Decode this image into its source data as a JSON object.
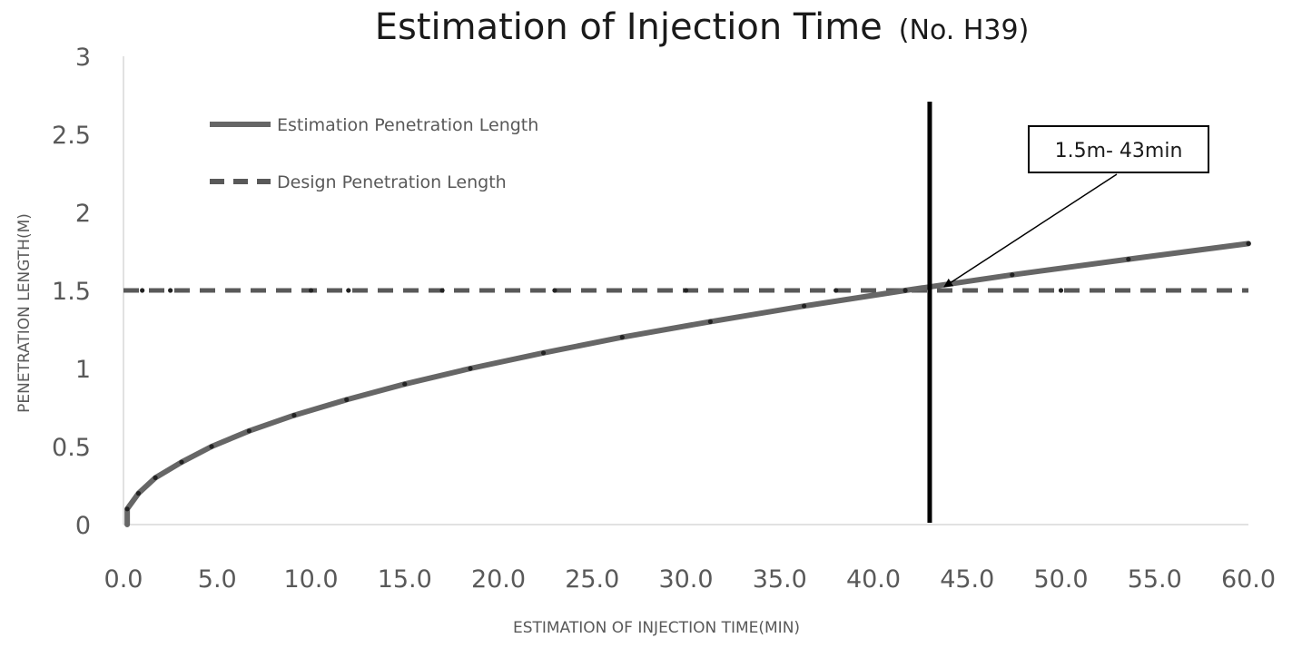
{
  "chart_data": {
    "type": "line",
    "title": "Estimation of Injection Time",
    "subtitle": "(No. H39)",
    "xlabel": "ESTIMATION OF INJECTION TIME(MIN)",
    "ylabel": "PENETRATION LENGTH(M)",
    "xlim": [
      0,
      60
    ],
    "ylim": [
      0,
      3
    ],
    "x_ticks": [
      "0.0",
      "5.0",
      "10.0",
      "15.0",
      "20.0",
      "25.0",
      "30.0",
      "35.0",
      "40.0",
      "45.0",
      "50.0",
      "55.0",
      "60.0"
    ],
    "y_ticks": [
      "0",
      "0.5",
      "1",
      "1.5",
      "2",
      "2.5",
      "3"
    ],
    "grid": false,
    "legend": "top-left",
    "series": [
      {
        "name": "Estimation Penetration Length",
        "style": "solid",
        "color": "#666666",
        "x": [
          0.2,
          0.8,
          1.7,
          3.1,
          4.7,
          6.7,
          9.1,
          11.9,
          15.0,
          18.5,
          22.4,
          26.6,
          31.3,
          36.3,
          41.7,
          47.4,
          53.6,
          60.0
        ],
        "y": [
          0.1,
          0.2,
          0.3,
          0.4,
          0.5,
          0.6,
          0.7,
          0.8,
          0.9,
          1.0,
          1.1,
          1.2,
          1.3,
          1.4,
          1.5,
          1.6,
          1.7,
          1.8
        ]
      },
      {
        "name": "Design Penetration Length",
        "style": "dashed",
        "color": "#595959",
        "x": [
          0,
          60
        ],
        "y": [
          1.5,
          1.5
        ]
      }
    ],
    "reference_line": {
      "x": 43,
      "color": "#000000"
    },
    "annotation": {
      "text": "1.5m- 43min",
      "x": 43,
      "y": 1.5
    }
  }
}
